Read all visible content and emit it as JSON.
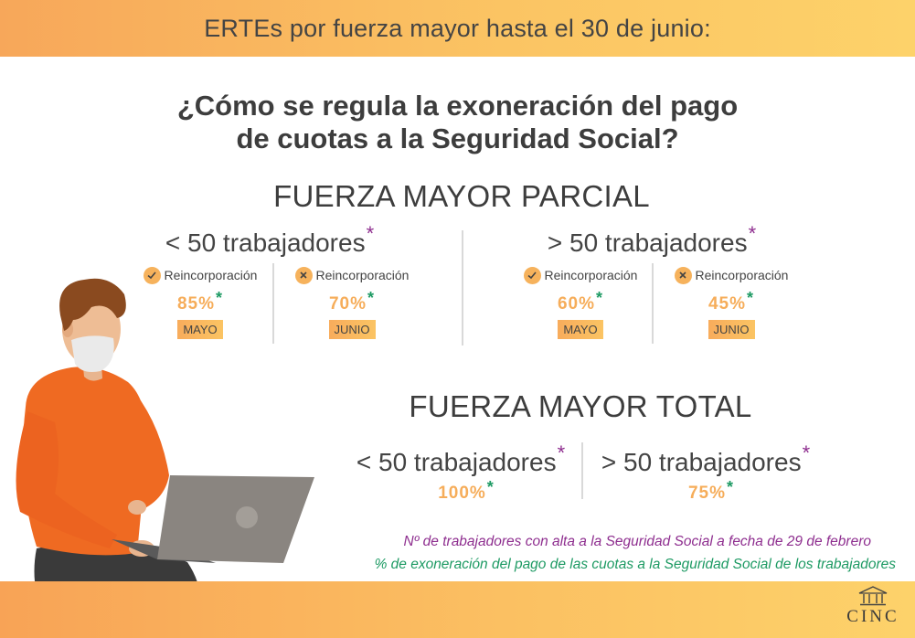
{
  "header": {
    "title": "ERTEs por fuerza mayor hasta el 30 de junio:"
  },
  "headline": {
    "line1": "¿Cómo se regula la exoneración del pago",
    "line2": "de cuotas a la Seguridad Social?"
  },
  "parcial": {
    "title": "FUERZA MAYOR PARCIAL",
    "groups": [
      {
        "title": "< 50 trabajadores",
        "cells": [
          {
            "icon": "check-icon",
            "label": "Reincorporación",
            "pct": "85%",
            "month": "MAYO"
          },
          {
            "icon": "cross-icon",
            "label": "Reincorporación",
            "pct": "70%",
            "month": "JUNIO"
          }
        ]
      },
      {
        "title": "> 50 trabajadores",
        "cells": [
          {
            "icon": "check-icon",
            "label": "Reincorporación",
            "pct": "60%",
            "month": "MAYO"
          },
          {
            "icon": "cross-icon",
            "label": "Reincorporación",
            "pct": "45%",
            "month": "JUNIO"
          }
        ]
      }
    ]
  },
  "total": {
    "title": "FUERZA MAYOR TOTAL",
    "groups": [
      {
        "title": "< 50 trabajadores",
        "pct": "100%"
      },
      {
        "title": "> 50 trabajadores",
        "pct": "75%"
      }
    ]
  },
  "star": "*",
  "footnotes": {
    "purple": "Nº de trabajadores con alta a la Seguridad Social a fecha de 29 de febrero",
    "green": "% de exoneración del pago de las cuotas a la Seguridad Social de los trabajadores"
  },
  "logo": {
    "text": "CINC"
  },
  "colors": {
    "accent_orange": "#f6ad5a",
    "star_purple": "#8e2e8f",
    "star_green": "#1d9a63",
    "shirt": "#ef6a22"
  }
}
